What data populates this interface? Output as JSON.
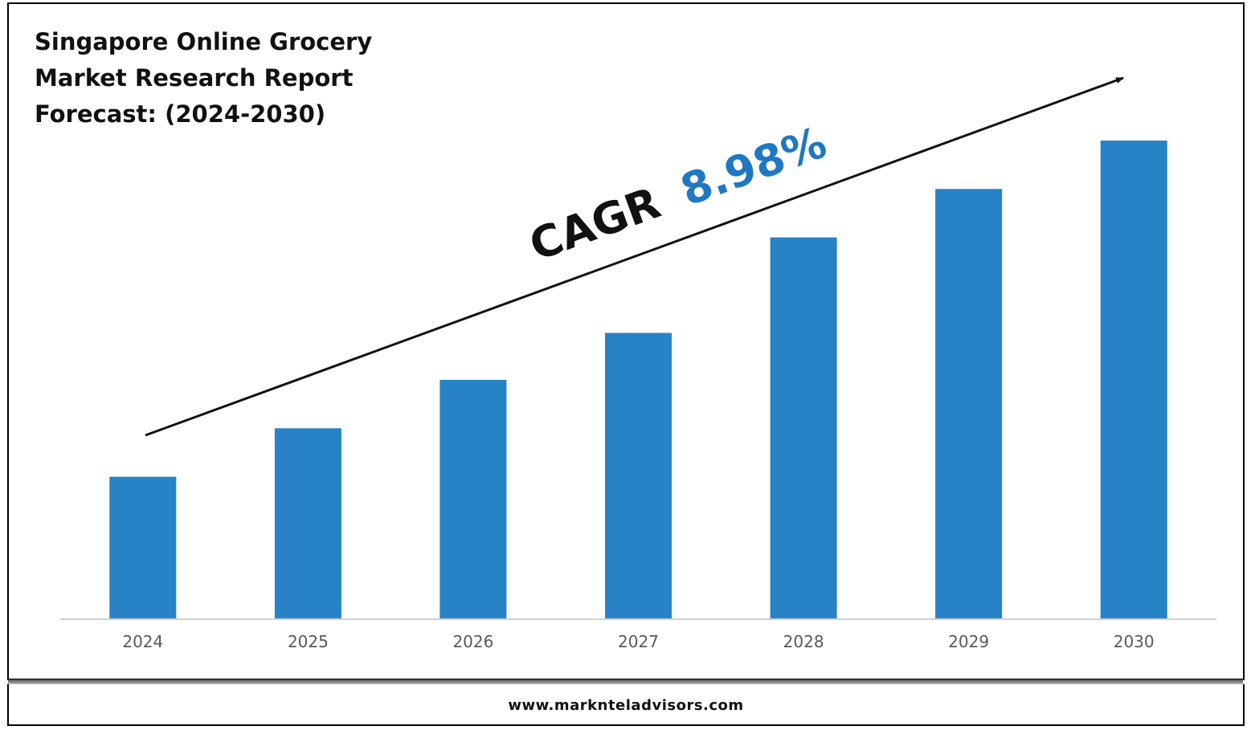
{
  "title_lines": [
    "Singapore Online Grocery",
    "Market Research Report",
    "Forecast: (2024-2030)"
  ],
  "cagr": {
    "label": "CAGR",
    "value": "8.98%",
    "label_color": "#111111",
    "value_color": "#1f78c1"
  },
  "footer": {
    "url": "www.marknteladvisors.com"
  },
  "colors": {
    "bar": "#2783c6",
    "axis": "#d0d0d0",
    "tick_label": "#595959"
  },
  "chart_data": {
    "type": "bar",
    "title": "Singapore Online Grocery Market Research Report Forecast: (2024-2030)",
    "categories": [
      "2024",
      "2025",
      "2026",
      "2027",
      "2028",
      "2029",
      "2030"
    ],
    "values": [
      1.0,
      1.34,
      1.68,
      2.01,
      2.68,
      3.02,
      3.36
    ],
    "values_note_scale": "relative",
    "ylim": [
      0,
      3.5
    ],
    "xlabel": "",
    "ylabel": "",
    "grid": false,
    "legend": "none"
  }
}
